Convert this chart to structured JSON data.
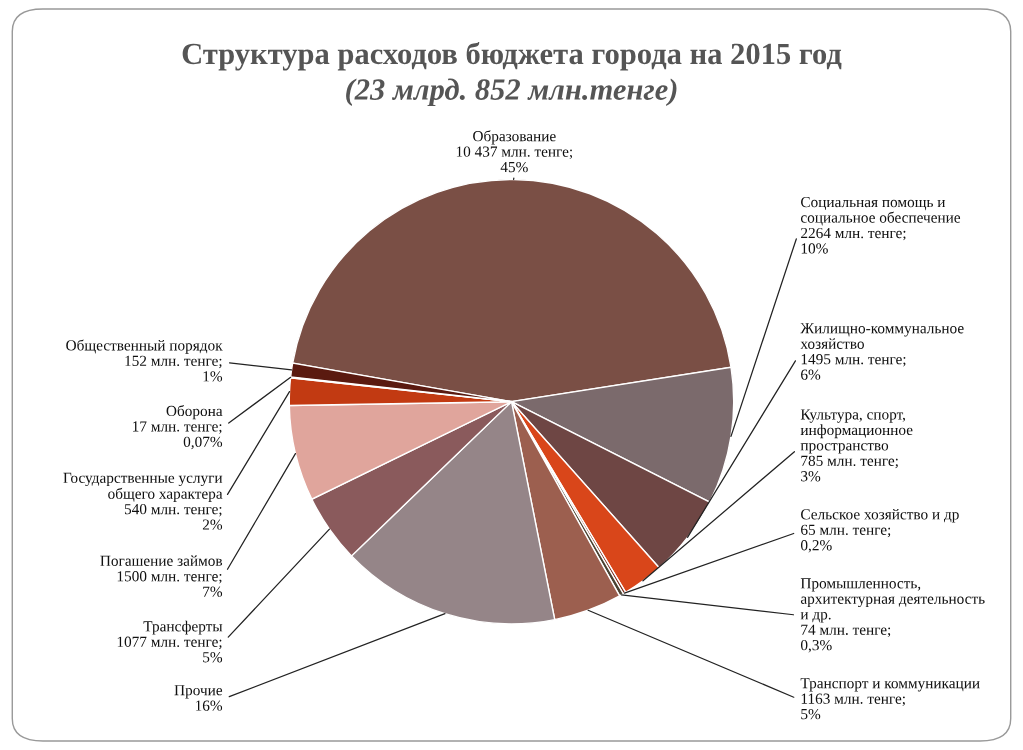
{
  "chart_data": {
    "type": "pie",
    "title": "Структура расходов бюджета города на 2015 год",
    "subtitle": "(23 млрд. 852 млн.тенге)",
    "categories": [
      "Образование",
      "Социальная помощь и\nсоциальное обеспечение",
      "Жилищно-коммунальное\nхозяйство",
      "Культура, спорт,\nинформационное\nпространство",
      "Сельское хозяйство и др",
      "Промышленность,\nархитектурная деятельность\nи др.",
      "Транспорт и коммуникации",
      "Прочие",
      "Трансферты",
      "Погашение займов",
      "Государственные услуги\nобщего характера",
      "Оборона",
      "Общественный порядок"
    ],
    "values": [
      45,
      10,
      6,
      3,
      0.2,
      0.3,
      5,
      16,
      5,
      7,
      2,
      0.07,
      1
    ],
    "value_labels": [
      "10 437 млн. тенге;\n45%",
      "2264 млн. тенге;\n10%",
      "1495 млн. тенге;\n6%",
      "785 млн. тенге;\n3%",
      "65 млн. тенге;\n0,2%",
      "74 млн. тенге;\n0,3%",
      "1163 млн. тенге;\n5%",
      "16%",
      "1077 млн. тенге;\n5%",
      "1500 млн. тенге;\n7%",
      "540 млн. тенге;\n2%",
      "17 млн. тенге;\n0,07%",
      "152 млн. тенге;\n1%"
    ],
    "colors": [
      "#7a4f45",
      "#7b6a6c",
      "#6e4644",
      "#d9461a",
      "#7a2a18",
      "#4a4232",
      "#9c5f4f",
      "#958588",
      "#8a5a5c",
      "#e0a59c",
      "#c23a12",
      "#8a7a5a",
      "#5a1a10"
    ]
  }
}
